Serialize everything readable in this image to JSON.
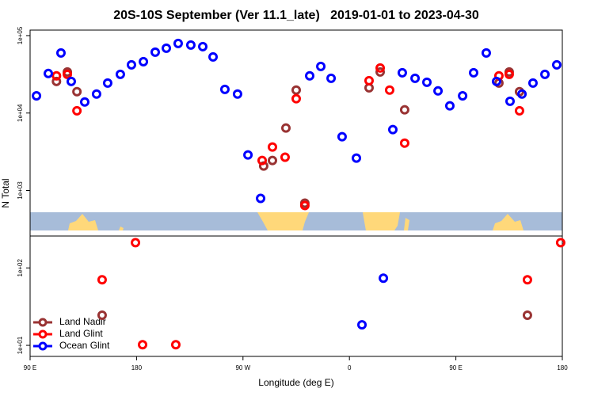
{
  "chart_data": {
    "type": "scatter",
    "title": "20S-10S September (Ver 11.1_late)   2019-01-01 to 2023-04-30",
    "x_label": "Longitude (deg E)",
    "y_label": "N Total",
    "log_y": true,
    "legend": "bottomleft",
    "xlim": [
      90,
      540
    ],
    "xticks": [
      {
        "value": 90,
        "label": "90 E"
      },
      180,
      {
        "value": 270,
        "label": "90 W"
      },
      {
        "value": 360,
        "label": "0"
      },
      {
        "value": 450,
        "label": "90 E"
      },
      {
        "value": 540,
        "label": "180"
      }
    ],
    "ylim": [
      7.2,
      117800
    ],
    "yticks": [
      {
        "value": 10,
        "label": "1e+01"
      },
      {
        "value": 100,
        "label": "1e+02"
      },
      {
        "value": 1000,
        "label": "1e+03"
      },
      {
        "value": 10000,
        "label": "1e+04"
      },
      {
        "value": 100000,
        "label": "1e+05"
      }
    ],
    "series": [
      {
        "name": "Land Nadir",
        "color": "#993333",
        "x": [
          112.3,
          121.5,
          129.6,
          150.9,
          287.5,
          294.9,
          306.3,
          315,
          322.3,
          376.6,
          386,
          406.7,
          486.4,
          495.1,
          503.8,
          510.5
        ],
        "values": [
          25600,
          33900,
          18900,
          24.5,
          2070,
          2440,
          6400,
          19800,
          687,
          21200,
          33900,
          11000,
          24400,
          33900,
          18900,
          24.5
        ]
      },
      {
        "name": "Land Glint",
        "color": "#ff0000",
        "x": [
          112.3,
          121.5,
          129.6,
          150.9,
          179.1,
          185.1,
          213.2,
          286.2,
          294.9,
          305.6,
          315,
          322.3,
          376.6,
          386,
          394,
          406.7,
          486.4,
          495.1,
          503.8,
          510.5,
          538.6
        ],
        "values": [
          30200,
          31600,
          10700,
          70.3,
          212,
          10.2,
          10.2,
          2440,
          3640,
          2690,
          15300,
          640,
          26200,
          38200,
          19800,
          4090,
          30200,
          31600,
          10700,
          70.3,
          212
        ]
      },
      {
        "name": "Ocean Glint",
        "color": "#0000ff",
        "x": [
          95.4,
          105.4,
          116.1,
          124.8,
          136.2,
          146.2,
          155.6,
          166.3,
          175.7,
          185.8,
          195.8,
          205.2,
          215.2,
          225.9,
          236,
          244.7,
          254.7,
          265.4,
          274.2,
          284.9,
          326.4,
          335.8,
          344.5,
          353.8,
          365.9,
          370.6,
          388.7,
          396.7,
          404.7,
          415.5,
          425.5,
          434.9,
          444.9,
          455.7,
          465,
          475.7,
          484.4,
          495.8,
          505.9,
          515.2,
          525.3,
          535.3
        ],
        "values": [
          16700,
          32400,
          59700,
          25600,
          13900,
          17600,
          24400,
          31600,
          41900,
          46000,
          61100,
          68700,
          79100,
          75500,
          72000,
          53000,
          20200,
          17600,
          2880,
          791,
          30200,
          40000,
          28100,
          4940,
          2620,
          18.4,
          73.6,
          6110,
          33100,
          28100,
          25000,
          19300,
          12400,
          16700,
          33100,
          59700,
          25600,
          14200,
          17600,
          24400,
          31600,
          41900
        ]
      }
    ]
  }
}
